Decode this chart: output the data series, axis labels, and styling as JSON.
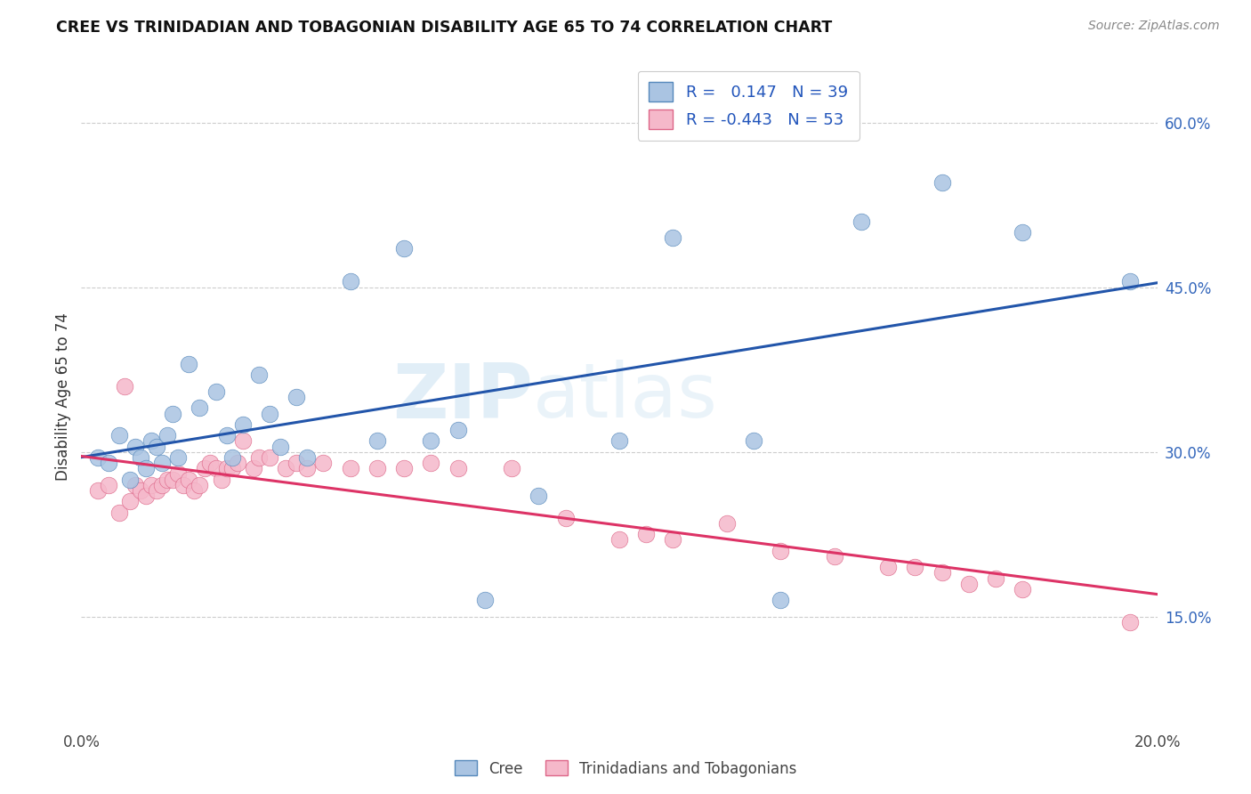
{
  "title": "CREE VS TRINIDADIAN AND TOBAGONIAN DISABILITY AGE 65 TO 74 CORRELATION CHART",
  "source": "Source: ZipAtlas.com",
  "ylabel": "Disability Age 65 to 74",
  "x_min": 0.0,
  "x_max": 0.2,
  "y_min": 0.05,
  "y_max": 0.65,
  "x_ticks": [
    0.0,
    0.04,
    0.08,
    0.12,
    0.16,
    0.2
  ],
  "x_tick_labels": [
    "0.0%",
    "",
    "",
    "",
    "",
    "20.0%"
  ],
  "y_ticks": [
    0.15,
    0.3,
    0.45,
    0.6
  ],
  "y_tick_labels": [
    "15.0%",
    "30.0%",
    "45.0%",
    "60.0%"
  ],
  "cree_color": "#aac4e2",
  "cree_edge_color": "#5588bb",
  "cree_line_color": "#2255aa",
  "tnt_color": "#f5b8ca",
  "tnt_edge_color": "#dd6688",
  "tnt_line_color": "#dd3366",
  "R_cree": "0.147",
  "N_cree": 39,
  "R_tnt": "-0.443",
  "N_tnt": 53,
  "legend_labels": [
    "Cree",
    "Trinidadians and Tobagonians"
  ],
  "watermark": "ZIPatlas",
  "cree_x": [
    0.003,
    0.005,
    0.007,
    0.009,
    0.01,
    0.011,
    0.012,
    0.013,
    0.014,
    0.015,
    0.016,
    0.017,
    0.018,
    0.02,
    0.022,
    0.025,
    0.027,
    0.028,
    0.03,
    0.033,
    0.035,
    0.037,
    0.04,
    0.042,
    0.05,
    0.055,
    0.06,
    0.065,
    0.07,
    0.075,
    0.085,
    0.1,
    0.11,
    0.125,
    0.13,
    0.145,
    0.16,
    0.175,
    0.195
  ],
  "cree_y": [
    0.295,
    0.29,
    0.315,
    0.275,
    0.305,
    0.295,
    0.285,
    0.31,
    0.305,
    0.29,
    0.315,
    0.335,
    0.295,
    0.38,
    0.34,
    0.355,
    0.315,
    0.295,
    0.325,
    0.37,
    0.335,
    0.305,
    0.35,
    0.295,
    0.455,
    0.31,
    0.485,
    0.31,
    0.32,
    0.165,
    0.26,
    0.31,
    0.495,
    0.31,
    0.165,
    0.51,
    0.545,
    0.5,
    0.455
  ],
  "tnt_x": [
    0.003,
    0.005,
    0.007,
    0.008,
    0.009,
    0.01,
    0.011,
    0.012,
    0.013,
    0.014,
    0.015,
    0.016,
    0.017,
    0.018,
    0.019,
    0.02,
    0.021,
    0.022,
    0.023,
    0.024,
    0.025,
    0.026,
    0.027,
    0.028,
    0.029,
    0.03,
    0.032,
    0.033,
    0.035,
    0.038,
    0.04,
    0.042,
    0.045,
    0.05,
    0.055,
    0.06,
    0.065,
    0.07,
    0.08,
    0.09,
    0.1,
    0.105,
    0.11,
    0.12,
    0.13,
    0.14,
    0.15,
    0.155,
    0.16,
    0.165,
    0.17,
    0.175,
    0.195
  ],
  "tnt_y": [
    0.265,
    0.27,
    0.245,
    0.36,
    0.255,
    0.27,
    0.265,
    0.26,
    0.27,
    0.265,
    0.27,
    0.275,
    0.275,
    0.28,
    0.27,
    0.275,
    0.265,
    0.27,
    0.285,
    0.29,
    0.285,
    0.275,
    0.285,
    0.285,
    0.29,
    0.31,
    0.285,
    0.295,
    0.295,
    0.285,
    0.29,
    0.285,
    0.29,
    0.285,
    0.285,
    0.285,
    0.29,
    0.285,
    0.285,
    0.24,
    0.22,
    0.225,
    0.22,
    0.235,
    0.21,
    0.205,
    0.195,
    0.195,
    0.19,
    0.18,
    0.185,
    0.175,
    0.145
  ]
}
